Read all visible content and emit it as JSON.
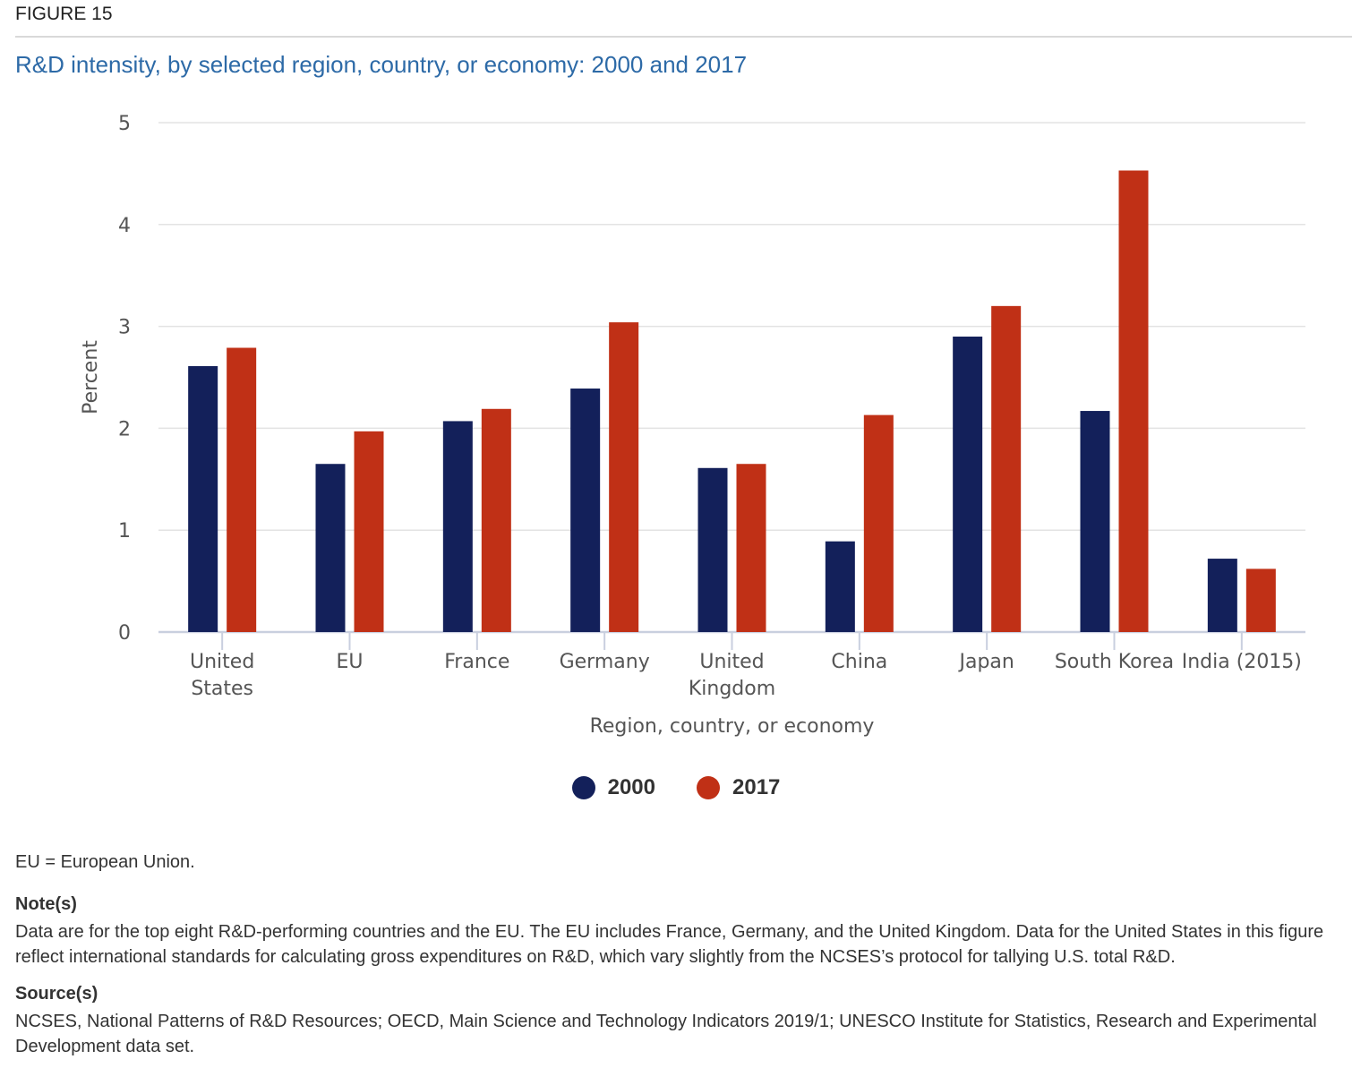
{
  "figure_label": "FIGURE 15",
  "chart_data": {
    "type": "bar",
    "title": "R&D intensity, by selected region, country, or economy: 2000 and 2017",
    "xlabel": "Region, country, or economy",
    "ylabel": "Percent",
    "ylim": [
      0,
      5
    ],
    "yticks": [
      "0",
      "1",
      "2",
      "3",
      "4",
      "5"
    ],
    "grid": true,
    "legend_position": "bottom-center",
    "categories": [
      [
        "United",
        "States"
      ],
      [
        "EU"
      ],
      [
        "France"
      ],
      [
        "Germany"
      ],
      [
        "United",
        "Kingdom"
      ],
      [
        "China"
      ],
      [
        "Japan"
      ],
      [
        "South Korea"
      ],
      [
        "India (2015)"
      ]
    ],
    "series": [
      {
        "name": "2000",
        "color": "#13205a",
        "values": [
          2.61,
          1.65,
          2.07,
          2.39,
          1.61,
          0.89,
          2.9,
          2.17,
          0.72
        ]
      },
      {
        "name": "2017",
        "color": "#c03016",
        "values": [
          2.79,
          1.97,
          2.19,
          3.04,
          1.65,
          2.13,
          3.2,
          4.53,
          0.62
        ]
      }
    ]
  },
  "footnote": "EU = European Union.",
  "notes": {
    "heading": "Note(s)",
    "text": "Data are for the top eight R&D-performing countries and the EU. The EU includes France, Germany, and the United Kingdom. Data for the United States in this figure reflect international standards for calculating gross expenditures on R&D, which vary slightly from the NCSES’s protocol for tallying U.S. total R&D."
  },
  "sources": {
    "heading": "Source(s)",
    "text": "NCSES, National Patterns of R&D Resources; OECD, Main Science and Technology Indicators 2019/1; UNESCO Institute for Statistics, Research and Experimental Development data set."
  }
}
